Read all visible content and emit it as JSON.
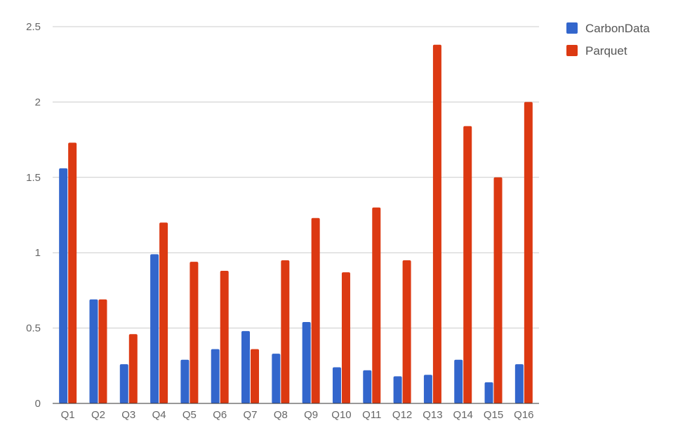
{
  "chart_data": {
    "type": "bar",
    "categories": [
      "Q1",
      "Q2",
      "Q3",
      "Q4",
      "Q5",
      "Q6",
      "Q7",
      "Q8",
      "Q9",
      "Q10",
      "Q11",
      "Q12",
      "Q13",
      "Q14",
      "Q15",
      "Q16"
    ],
    "series": [
      {
        "name": "CarbonData",
        "color": "#3366cc",
        "values": [
          1.56,
          0.69,
          0.26,
          0.99,
          0.29,
          0.36,
          0.48,
          0.33,
          0.54,
          0.24,
          0.22,
          0.18,
          0.19,
          0.29,
          0.14,
          0.26
        ]
      },
      {
        "name": "Parquet",
        "color": "#dc3912",
        "values": [
          1.73,
          0.69,
          0.46,
          1.2,
          0.94,
          0.88,
          0.36,
          0.95,
          1.23,
          0.87,
          1.3,
          0.95,
          2.38,
          1.84,
          1.5,
          2.0
        ]
      }
    ],
    "yticks": [
      "0",
      "0.5",
      "1",
      "1.5",
      "2",
      "2.5"
    ],
    "ylim": [
      0,
      2.5
    ],
    "grid": true,
    "legend": "right"
  }
}
